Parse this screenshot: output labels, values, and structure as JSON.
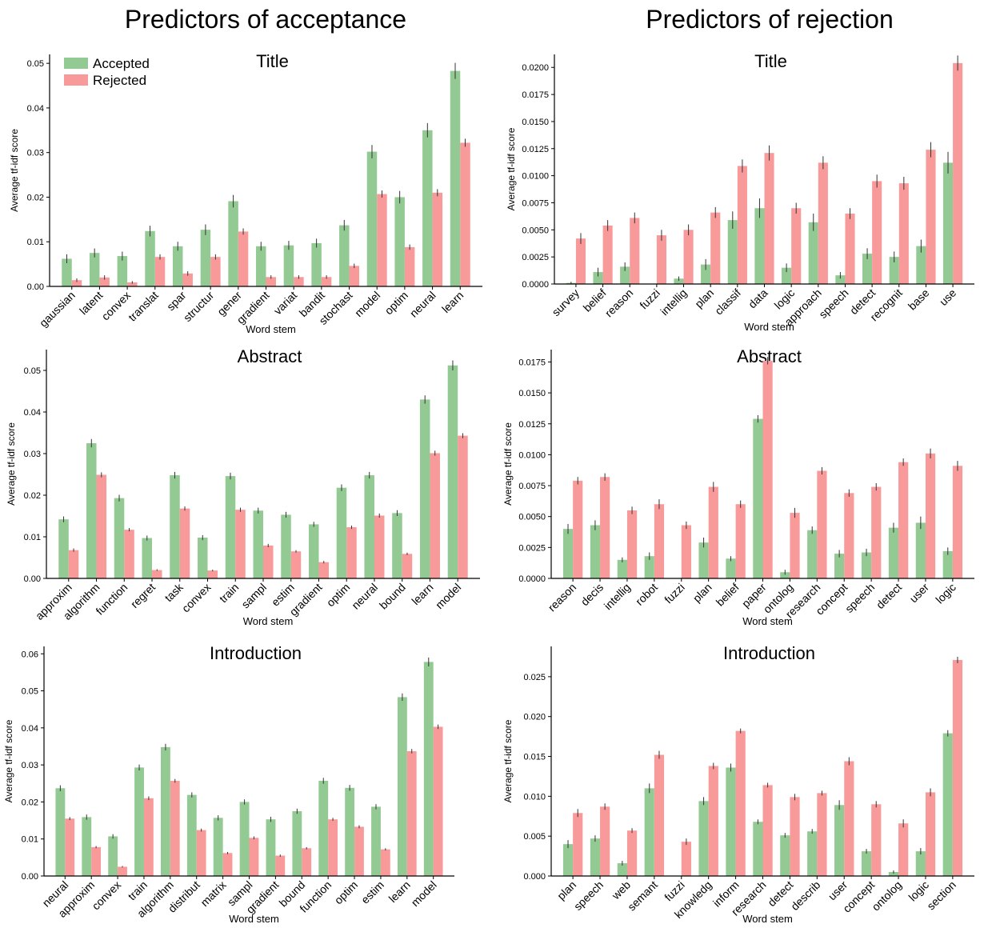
{
  "columns": {
    "left_title": "Predictors of acceptance",
    "right_title": "Predictors of rejection"
  },
  "legend": {
    "accepted_label": "Accepted",
    "rejected_label": "Rejected"
  },
  "colors": {
    "accepted": "#93c993",
    "rejected": "#f99a9a",
    "error_bar": "#333333"
  },
  "chart_data": [
    {
      "type": "bar",
      "column": "acceptance",
      "title": "Title",
      "xlabel": "Word stem",
      "ylabel": "Average tf-idf score",
      "ylim": [
        0,
        0.052
      ],
      "yticks": [
        0.0,
        0.01,
        0.02,
        0.03,
        0.04,
        0.05
      ],
      "ytick_labels": [
        "0.00",
        "0.01",
        "0.02",
        "0.03",
        "0.04",
        "0.05"
      ],
      "legend": "top-left",
      "categories": [
        "gaussian",
        "latent",
        "convex",
        "translat",
        "spar",
        "structur",
        "gener",
        "gradient",
        "variat",
        "bandit",
        "stochast",
        "model",
        "optim",
        "neural",
        "learn"
      ],
      "series": [
        {
          "name": "Accepted",
          "values": [
            0.0062,
            0.0075,
            0.0068,
            0.0124,
            0.009,
            0.0127,
            0.0191,
            0.009,
            0.0092,
            0.0097,
            0.0137,
            0.0302,
            0.02,
            0.035,
            0.0483
          ],
          "errors": [
            0.001,
            0.001,
            0.001,
            0.0012,
            0.001,
            0.0012,
            0.0014,
            0.001,
            0.001,
            0.001,
            0.0012,
            0.0015,
            0.0014,
            0.0016,
            0.0018
          ]
        },
        {
          "name": "Rejected",
          "values": [
            0.0014,
            0.002,
            0.0009,
            0.0066,
            0.0029,
            0.0066,
            0.0123,
            0.0021,
            0.0021,
            0.0021,
            0.0046,
            0.0207,
            0.0088,
            0.021,
            0.0322
          ],
          "errors": [
            0.0004,
            0.0005,
            0.0003,
            0.0006,
            0.0005,
            0.0006,
            0.0007,
            0.0004,
            0.0004,
            0.0004,
            0.0005,
            0.0008,
            0.0006,
            0.0008,
            0.0009
          ]
        }
      ]
    },
    {
      "type": "bar",
      "column": "acceptance",
      "title": "Abstract",
      "xlabel": "Word stem",
      "ylabel": "Average tf-idf score",
      "ylim": [
        0,
        0.055
      ],
      "yticks": [
        0.0,
        0.01,
        0.02,
        0.03,
        0.04,
        0.05
      ],
      "ytick_labels": [
        "0.00",
        "0.01",
        "0.02",
        "0.03",
        "0.04",
        "0.05"
      ],
      "categories": [
        "approxim",
        "algorithm",
        "function",
        "regret",
        "task",
        "convex",
        "train",
        "sampl",
        "estim",
        "gradient",
        "optim",
        "neural",
        "bound",
        "learn",
        "model"
      ],
      "series": [
        {
          "name": "Accepted",
          "values": [
            0.0142,
            0.0325,
            0.0193,
            0.0097,
            0.0248,
            0.0098,
            0.0246,
            0.0163,
            0.0153,
            0.013,
            0.0218,
            0.0248,
            0.0157,
            0.043,
            0.0512
          ],
          "errors": [
            0.0007,
            0.001,
            0.0008,
            0.0006,
            0.0008,
            0.0006,
            0.0008,
            0.0007,
            0.0007,
            0.0006,
            0.0008,
            0.0008,
            0.0007,
            0.001,
            0.0012
          ]
        },
        {
          "name": "Rejected",
          "values": [
            0.0068,
            0.0249,
            0.0117,
            0.002,
            0.0168,
            0.0019,
            0.0165,
            0.0079,
            0.0065,
            0.0039,
            0.0123,
            0.0151,
            0.0059,
            0.0301,
            0.0343
          ],
          "errors": [
            0.0004,
            0.0006,
            0.0004,
            0.0002,
            0.0005,
            0.0002,
            0.0005,
            0.0004,
            0.0003,
            0.0003,
            0.0004,
            0.0005,
            0.0003,
            0.0006,
            0.0006
          ]
        }
      ]
    },
    {
      "type": "bar",
      "column": "acceptance",
      "title": "Introduction",
      "xlabel": "Word stem",
      "ylabel": "Average tf-idf score",
      "ylim": [
        0,
        0.062
      ],
      "yticks": [
        0.0,
        0.01,
        0.02,
        0.03,
        0.04,
        0.05,
        0.06
      ],
      "ytick_labels": [
        "0.00",
        "0.01",
        "0.02",
        "0.03",
        "0.04",
        "0.05",
        "0.06"
      ],
      "categories": [
        "neural",
        "approxim",
        "convex",
        "train",
        "algorithm",
        "distribut",
        "matrix",
        "sampl",
        "gradient",
        "bound",
        "function",
        "optim",
        "estim",
        "learn",
        "model"
      ],
      "series": [
        {
          "name": "Accepted",
          "values": [
            0.0237,
            0.0159,
            0.0107,
            0.0293,
            0.0348,
            0.0219,
            0.0157,
            0.02,
            0.0153,
            0.0175,
            0.0257,
            0.0238,
            0.0187,
            0.0483,
            0.0578
          ],
          "errors": [
            0.0008,
            0.0007,
            0.0006,
            0.0008,
            0.0009,
            0.0007,
            0.0007,
            0.0007,
            0.0007,
            0.0007,
            0.0008,
            0.0008,
            0.0007,
            0.001,
            0.0012
          ]
        },
        {
          "name": "Rejected",
          "values": [
            0.0155,
            0.0078,
            0.0025,
            0.021,
            0.0257,
            0.0124,
            0.0062,
            0.0103,
            0.0055,
            0.0075,
            0.0153,
            0.0133,
            0.0072,
            0.0337,
            0.0403
          ],
          "errors": [
            0.0004,
            0.0003,
            0.0002,
            0.0005,
            0.0005,
            0.0004,
            0.0003,
            0.0004,
            0.0003,
            0.0003,
            0.0004,
            0.0004,
            0.0003,
            0.0006,
            0.0006
          ]
        }
      ]
    },
    {
      "type": "bar",
      "column": "rejection",
      "title": "Title",
      "xlabel": "Word stem",
      "ylabel": "Average tf-idf score",
      "ylim": [
        0,
        0.0212
      ],
      "yticks": [
        0.0,
        0.0025,
        0.005,
        0.0075,
        0.01,
        0.0125,
        0.015,
        0.0175,
        0.02
      ],
      "ytick_labels": [
        "0.0000",
        "0.0025",
        "0.0050",
        "0.0075",
        "0.0100",
        "0.0125",
        "0.0150",
        "0.0175",
        "0.0200"
      ],
      "categories": [
        "survey",
        "belief",
        "reason",
        "fuzzi",
        "intellig",
        "plan",
        "classif",
        "data",
        "logic",
        "approach",
        "speech",
        "detect",
        "recognit",
        "base",
        "use"
      ],
      "series": [
        {
          "name": "Accepted",
          "values": [
            0.0001,
            0.0011,
            0.0016,
            0.0,
            0.0005,
            0.0018,
            0.0059,
            0.007,
            0.0015,
            0.0057,
            0.0008,
            0.0028,
            0.0025,
            0.0035,
            0.0112
          ],
          "errors": [
            0.0001,
            0.0004,
            0.0004,
            0.0,
            0.0002,
            0.0005,
            0.0008,
            0.0009,
            0.0004,
            0.0008,
            0.0003,
            0.0005,
            0.0005,
            0.0006,
            0.001
          ]
        },
        {
          "name": "Rejected",
          "values": [
            0.0042,
            0.0054,
            0.0061,
            0.0045,
            0.005,
            0.0066,
            0.0109,
            0.0121,
            0.007,
            0.0112,
            0.0065,
            0.0095,
            0.0093,
            0.0124,
            0.0204
          ],
          "errors": [
            0.0005,
            0.0005,
            0.0005,
            0.0005,
            0.0005,
            0.0005,
            0.0006,
            0.0007,
            0.0005,
            0.0006,
            0.0005,
            0.0006,
            0.0006,
            0.0007,
            0.0007
          ]
        }
      ]
    },
    {
      "type": "bar",
      "column": "rejection",
      "title": "Abstract",
      "xlabel": "Word stem",
      "ylabel": "Average tf-idf score",
      "ylim": [
        0,
        0.0185
      ],
      "yticks": [
        0.0,
        0.0025,
        0.005,
        0.0075,
        0.01,
        0.0125,
        0.015,
        0.0175
      ],
      "ytick_labels": [
        "0.0000",
        "0.0025",
        "0.0050",
        "0.0075",
        "0.0100",
        "0.0125",
        "0.0150",
        "0.0175"
      ],
      "categories": [
        "reason",
        "decis",
        "intellig",
        "robot",
        "fuzzi",
        "plan",
        "belief",
        "paper",
        "ontolog",
        "research",
        "concept",
        "speech",
        "detect",
        "user",
        "logic"
      ],
      "series": [
        {
          "name": "Accepted",
          "values": [
            0.004,
            0.0043,
            0.0015,
            0.0018,
            0.0,
            0.0029,
            0.0016,
            0.0129,
            0.0005,
            0.0039,
            0.002,
            0.0021,
            0.0041,
            0.0045,
            0.0022
          ],
          "errors": [
            0.0004,
            0.0004,
            0.0002,
            0.0003,
            0.0,
            0.0004,
            0.0002,
            0.0003,
            0.0002,
            0.0003,
            0.0003,
            0.0003,
            0.0004,
            0.0005,
            0.0003
          ]
        },
        {
          "name": "Rejected",
          "values": [
            0.0079,
            0.0082,
            0.0055,
            0.006,
            0.0043,
            0.0074,
            0.006,
            0.0176,
            0.0053,
            0.0087,
            0.0069,
            0.0074,
            0.0094,
            0.0101,
            0.0091
          ],
          "errors": [
            0.0003,
            0.0003,
            0.0003,
            0.0004,
            0.0003,
            0.0004,
            0.0003,
            0.0003,
            0.0004,
            0.0003,
            0.0003,
            0.0003,
            0.0003,
            0.0004,
            0.0004
          ]
        }
      ]
    },
    {
      "type": "bar",
      "column": "rejection",
      "title": "Introduction",
      "xlabel": "Word stem",
      "ylabel": "Average tf-idf score",
      "ylim": [
        0,
        0.0288
      ],
      "yticks": [
        0.0,
        0.005,
        0.01,
        0.015,
        0.02,
        0.025
      ],
      "ytick_labels": [
        "0.000",
        "0.005",
        "0.010",
        "0.015",
        "0.020",
        "0.025"
      ],
      "categories": [
        "plan",
        "speech",
        "web",
        "semant",
        "fuzzi",
        "knowledg",
        "inform",
        "research",
        "detect",
        "describ",
        "user",
        "concept",
        "ontolog",
        "logic",
        "section"
      ],
      "series": [
        {
          "name": "Accepted",
          "values": [
            0.004,
            0.0047,
            0.0016,
            0.011,
            0.0,
            0.0094,
            0.0136,
            0.0068,
            0.0051,
            0.0056,
            0.0089,
            0.0031,
            0.0005,
            0.0031,
            0.0179
          ],
          "errors": [
            0.0005,
            0.0004,
            0.0003,
            0.0006,
            0.0,
            0.0005,
            0.0005,
            0.0003,
            0.0003,
            0.0003,
            0.0006,
            0.0003,
            0.0002,
            0.0004,
            0.0004
          ]
        },
        {
          "name": "Rejected",
          "values": [
            0.0079,
            0.0087,
            0.0057,
            0.0152,
            0.0043,
            0.0138,
            0.0182,
            0.0114,
            0.0099,
            0.0104,
            0.0144,
            0.009,
            0.0066,
            0.0105,
            0.0271
          ],
          "errors": [
            0.0005,
            0.0004,
            0.0003,
            0.0005,
            0.0004,
            0.0004,
            0.0003,
            0.0003,
            0.0004,
            0.0003,
            0.0005,
            0.0004,
            0.0005,
            0.0005,
            0.0004
          ]
        }
      ]
    }
  ]
}
